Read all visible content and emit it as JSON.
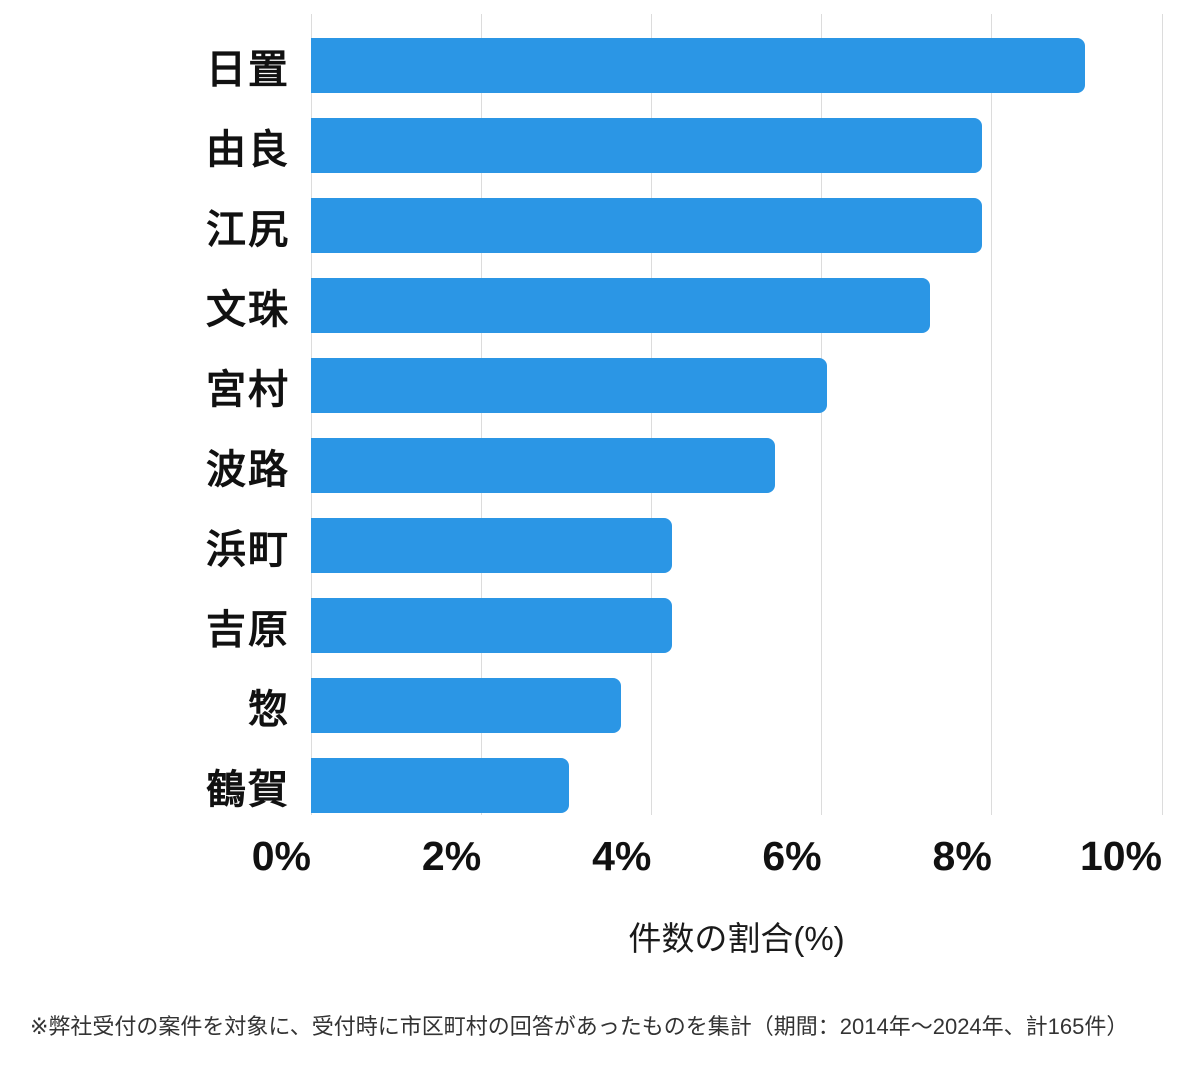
{
  "chart_data": {
    "type": "bar",
    "orientation": "horizontal",
    "categories": [
      "日置",
      "由良",
      "江尻",
      "文珠",
      "宮村",
      "波路",
      "浜町",
      "吉原",
      "惣",
      "鶴賀"
    ],
    "values": [
      9.09,
      7.88,
      7.88,
      7.27,
      6.06,
      5.45,
      4.24,
      4.24,
      3.64,
      3.03
    ],
    "xlabel": "件数の割合(%)",
    "xlim": [
      0,
      10
    ],
    "xticks": [
      0,
      2,
      4,
      6,
      8,
      10
    ],
    "xtick_labels": [
      "0%",
      "2%",
      "4%",
      "6%",
      "8%",
      "10%"
    ],
    "grid": true,
    "legend": false,
    "bar_color": "#2B96E5",
    "gridline_color": "#DCDCDC",
    "tick_label_color": "#111111",
    "category_label_color": "#111111"
  },
  "footnote": "※弊社受付の案件を対象に、受付時に市区町村の回答があったものを集計（期間：2014年～2024年、計165件）"
}
